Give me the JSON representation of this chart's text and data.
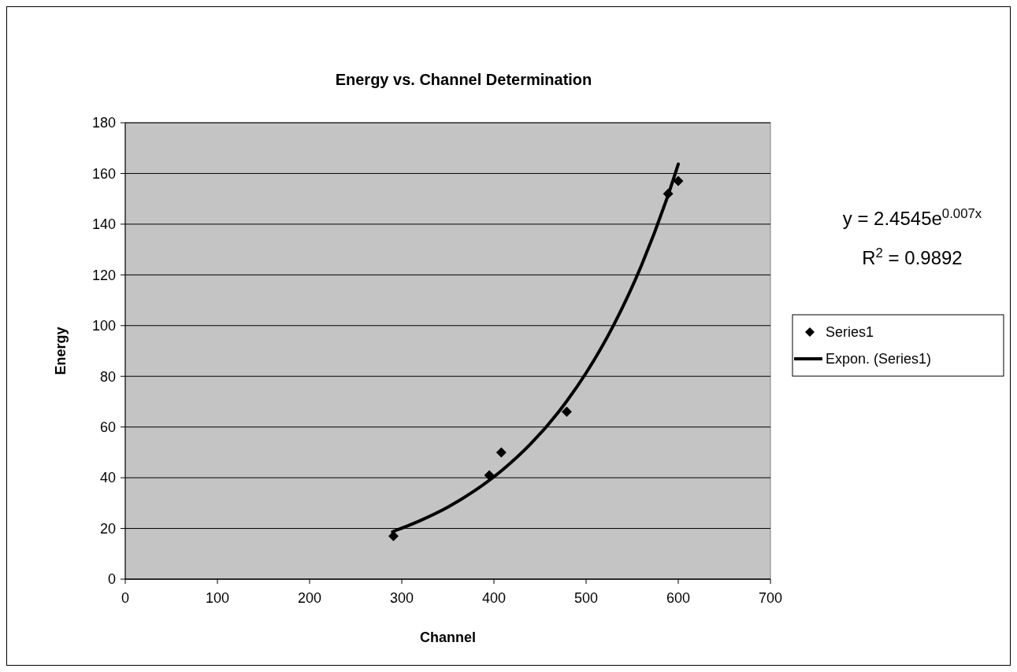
{
  "chart_data": {
    "type": "scatter",
    "title": "Energy vs. Channel Determination",
    "xlabel": "Channel",
    "ylabel": "Energy",
    "xlim": [
      0,
      700
    ],
    "xticks": [
      0,
      100,
      200,
      300,
      400,
      500,
      600,
      700
    ],
    "ylim": [
      0,
      180
    ],
    "yticks": [
      0,
      20,
      40,
      60,
      80,
      100,
      120,
      140,
      160,
      180
    ],
    "grid": "y",
    "legend": "right",
    "annotations": [
      "y = 2.4545e$^{0.007x}$",
      "R$^{2}$ = 0.9892"
    ],
    "series": [
      {
        "name": "Series1",
        "marker": "diamond",
        "color": "#000000",
        "x": [
          291,
          395,
          408,
          479,
          589,
          600
        ],
        "values": [
          17,
          41,
          50,
          66,
          152,
          157
        ]
      },
      {
        "name": "Expon. (Series1)",
        "type": "line",
        "color": "#000000",
        "line_style": "solid",
        "x": [
          290,
          320,
          350,
          380,
          410,
          440,
          470,
          500,
          530,
          560,
          590,
          600
        ],
        "values": [
          18.7,
          23.1,
          28.4,
          35.1,
          43.3,
          53.4,
          65.9,
          81.3,
          100.3,
          123.7,
          152.6,
          163.7
        ]
      }
    ]
  }
}
